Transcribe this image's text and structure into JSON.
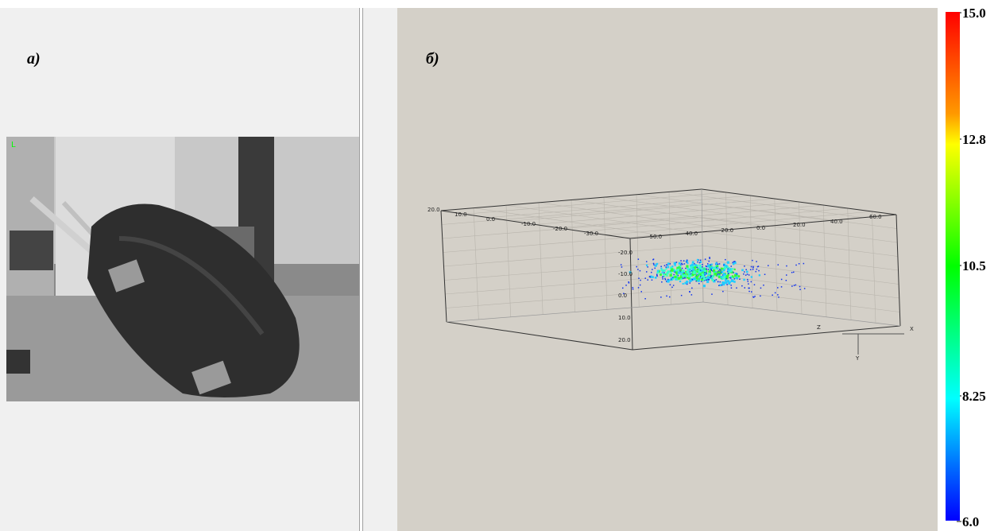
{
  "photo_panel": {
    "label": "а)",
    "overlay": "L"
  },
  "cloud_panel": {
    "label": "б)",
    "scene": {
      "depth_ticks": [
        "20.0",
        "10.0",
        "0.0",
        "-10.0",
        "-20.0",
        "-30.0"
      ],
      "x_ticks": [
        "-50.0",
        "-40.0",
        "-20.0",
        "0.0",
        "20.0",
        "40.0",
        "60.0"
      ],
      "y_ticks": [
        "-20.0",
        "-10.0",
        "0.0",
        "10.0",
        "20.0"
      ],
      "axes": [
        "Z",
        "X",
        "Y"
      ]
    }
  },
  "colorbar": {
    "labels": [
      "15.0",
      "12.8",
      "10.5",
      "8.25",
      "6.0"
    ]
  }
}
